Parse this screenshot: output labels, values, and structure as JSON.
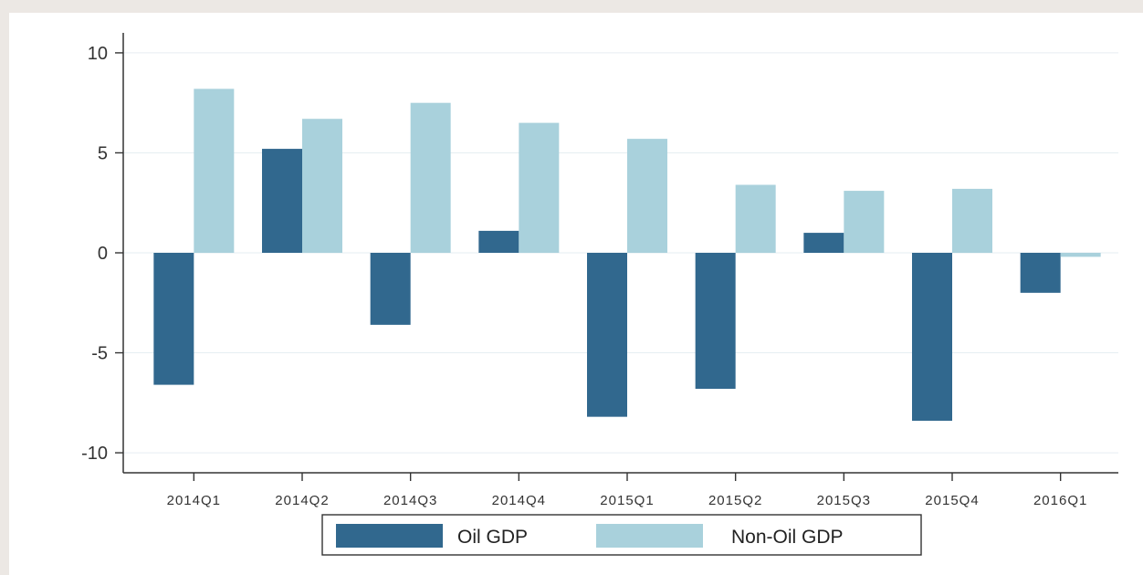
{
  "chart_data": {
    "type": "bar",
    "title": "",
    "xlabel": "",
    "ylabel": "",
    "categories": [
      "2014Q1",
      "2014Q2",
      "2014Q3",
      "2014Q4",
      "2015Q1",
      "2015Q2",
      "2015Q3",
      "2015Q4",
      "2016Q1"
    ],
    "series": [
      {
        "name": "Oil GDP",
        "values": [
          -6.6,
          5.2,
          -3.6,
          1.1,
          -8.2,
          -6.8,
          1.0,
          -8.4,
          -2.0
        ],
        "color": "#31688e"
      },
      {
        "name": "Non-Oil GDP",
        "values": [
          8.2,
          6.7,
          7.5,
          6.5,
          5.7,
          3.4,
          3.1,
          3.2,
          -0.2
        ],
        "color": "#a9d1dc"
      }
    ],
    "ylim": [
      -11,
      11
    ],
    "yticks": [
      -10,
      -5,
      0,
      5,
      10
    ],
    "grid": true,
    "legend_position": "bottom"
  }
}
